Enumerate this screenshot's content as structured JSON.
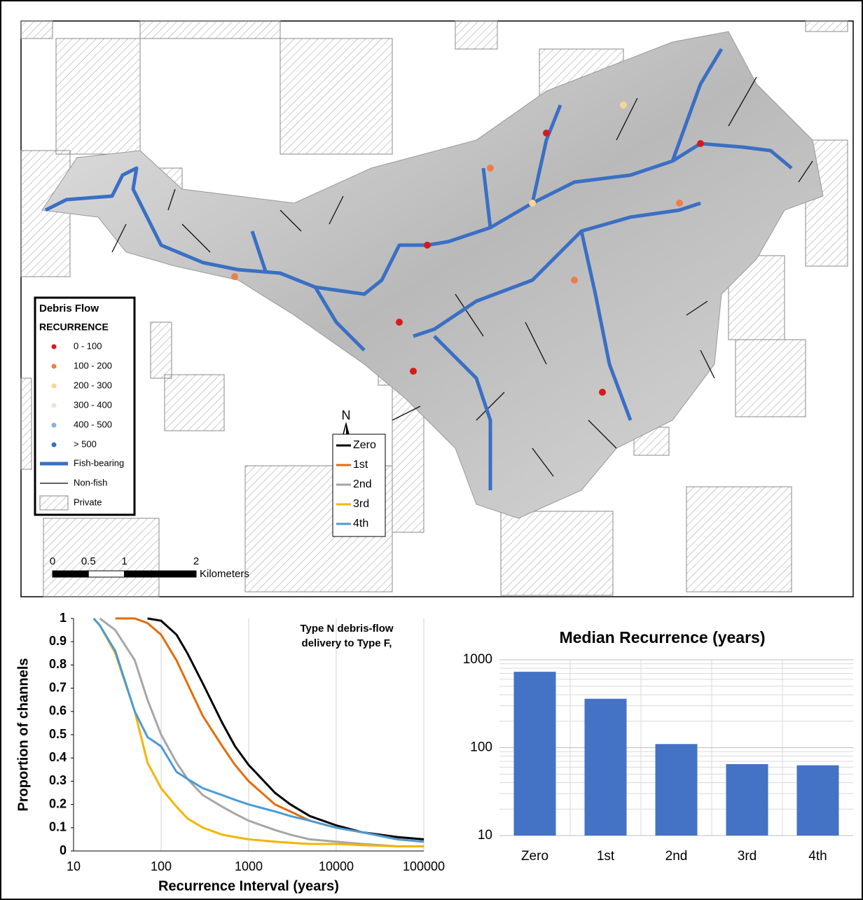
{
  "map": {
    "legend": {
      "title": "Debris Flow",
      "subtitle": "RECURRENCE",
      "items": [
        {
          "label": "0 - 100",
          "color": "#d7191c"
        },
        {
          "label": "100 - 200",
          "color": "#ef7d4b"
        },
        {
          "label": "200 - 300",
          "color": "#fbd39a"
        },
        {
          "label": "300 - 400",
          "color": "#e3ead0"
        },
        {
          "label": "400 - 500",
          "color": "#86b4d8"
        },
        {
          "label": "> 500",
          "color": "#3a6fc4"
        }
      ],
      "fish": "Fish-bearing",
      "nonfish": "Non-fish",
      "private": "Private"
    },
    "north": "N",
    "scale": {
      "ticks": [
        0,
        0.5,
        1,
        2
      ],
      "unit": "Kilometers"
    }
  },
  "chart_data": [
    {
      "type": "line",
      "annotation": [
        "Type N debris-flow",
        "delivery to Type F,"
      ],
      "xlabel": "Recurrence Interval (years)",
      "ylabel": "Proportion of channels",
      "log_x": true,
      "x": [
        17,
        20,
        30,
        50,
        70,
        100,
        150,
        200,
        300,
        500,
        700,
        1000,
        2000,
        3000,
        5000,
        10000,
        20000,
        50000,
        100000
      ],
      "series": [
        {
          "name": "Zero",
          "color": "#000000",
          "values": [
            null,
            null,
            null,
            null,
            1.0,
            0.99,
            0.93,
            0.85,
            0.72,
            0.55,
            0.45,
            0.37,
            0.25,
            0.2,
            0.15,
            0.11,
            0.08,
            0.06,
            0.05
          ]
        },
        {
          "name": "1st",
          "color": "#e46c0a",
          "values": [
            null,
            null,
            1.0,
            1.0,
            0.98,
            0.93,
            0.82,
            0.72,
            0.58,
            0.45,
            0.37,
            0.3,
            0.2,
            0.17,
            0.13,
            0.1,
            0.08,
            0.05,
            0.04
          ]
        },
        {
          "name": "2nd",
          "color": "#a6a6a6",
          "values": [
            null,
            1.0,
            0.95,
            0.82,
            0.65,
            0.5,
            0.38,
            0.31,
            0.24,
            0.19,
            0.16,
            0.13,
            0.09,
            0.07,
            0.05,
            0.04,
            0.03,
            0.02,
            0.02
          ]
        },
        {
          "name": "3rd",
          "color": "#f2b600",
          "values": [
            1.0,
            0.97,
            0.85,
            0.6,
            0.38,
            0.27,
            0.19,
            0.14,
            0.1,
            0.07,
            0.06,
            0.05,
            0.04,
            0.035,
            0.03,
            0.03,
            0.025,
            0.02,
            0.02
          ]
        },
        {
          "name": "4th",
          "color": "#4a9bd4",
          "values": [
            1.0,
            0.97,
            0.86,
            0.6,
            0.49,
            0.45,
            0.34,
            0.31,
            0.27,
            0.24,
            0.22,
            0.2,
            0.17,
            0.15,
            0.13,
            0.1,
            0.08,
            0.05,
            0.04
          ]
        }
      ],
      "xlim": [
        10,
        100000
      ],
      "xticks": [
        10,
        100,
        1000,
        10000,
        100000
      ],
      "ylim": [
        0,
        1
      ],
      "yticks": [
        0,
        0.1,
        0.2,
        0.3,
        0.4,
        0.5,
        0.6,
        0.7,
        0.8,
        0.9,
        1
      ],
      "grid": true,
      "legend": "right"
    },
    {
      "type": "bar",
      "title": "Median Recurrence (years)",
      "categories": [
        "Zero",
        "1st",
        "2nd",
        "3rd",
        "4th"
      ],
      "values": [
        730,
        360,
        110,
        65,
        63
      ],
      "color": "#4472c4",
      "log_y": true,
      "ylim": [
        10,
        1000
      ],
      "yticks": [
        10,
        100,
        1000
      ],
      "grid": true
    }
  ]
}
